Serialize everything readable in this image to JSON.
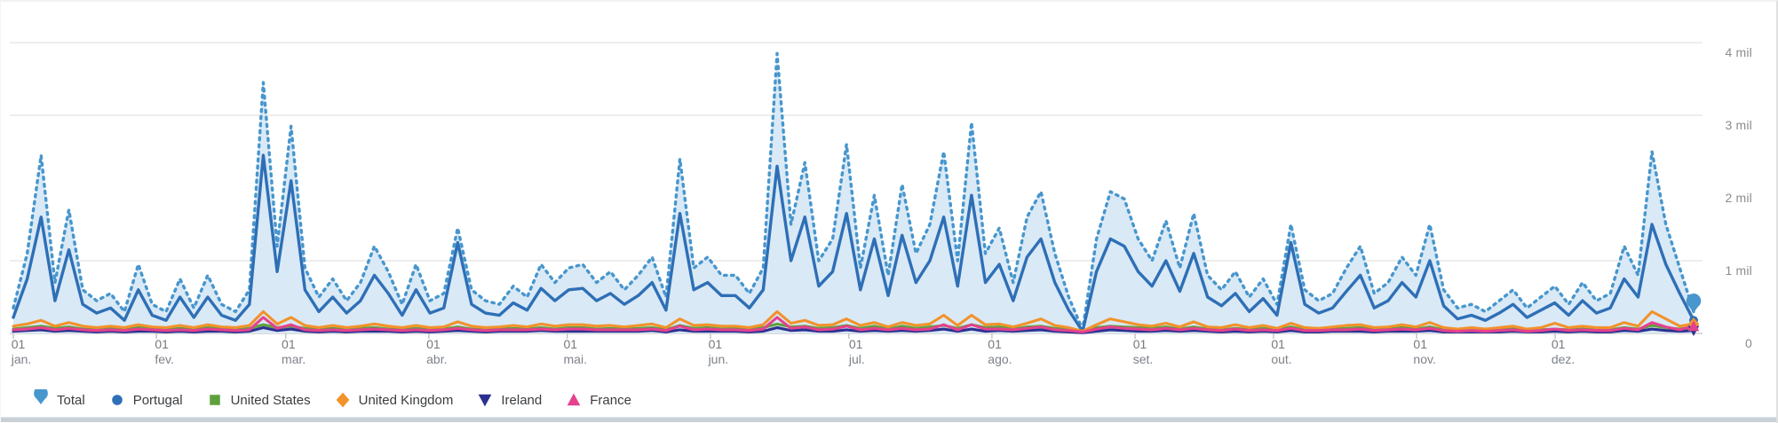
{
  "legend": {
    "items": [
      {
        "label": "Total",
        "marker": "pin",
        "color": "#4796cd"
      },
      {
        "label": "Portugal",
        "marker": "circle",
        "color": "#2e6fb6"
      },
      {
        "label": "United States",
        "marker": "square",
        "color": "#5ea13c"
      },
      {
        "label": "United Kingdom",
        "marker": "diamond",
        "color": "#f2922a"
      },
      {
        "label": "Ireland",
        "marker": "triangle-down",
        "color": "#2c3190"
      },
      {
        "label": "France",
        "marker": "triangle-up",
        "color": "#e5418f"
      }
    ]
  },
  "chart_data": {
    "type": "line",
    "title": "",
    "unit": "mil",
    "sampling": "daily traffic Jan 1 - Dec 31, values in millions estimated every 3 days",
    "x_axis": {
      "ticks": [
        {
          "line1": "01",
          "line2": "jan.",
          "day": 0
        },
        {
          "line1": "01",
          "line2": "fev.",
          "day": 31
        },
        {
          "line1": "01",
          "line2": "mar.",
          "day": 59
        },
        {
          "line1": "01",
          "line2": "abr.",
          "day": 90
        },
        {
          "line1": "01",
          "line2": "mai.",
          "day": 120
        },
        {
          "line1": "01",
          "line2": "jun.",
          "day": 151
        },
        {
          "line1": "01",
          "line2": "jul.",
          "day": 181
        },
        {
          "line1": "01",
          "line2": "ago.",
          "day": 212
        },
        {
          "line1": "01",
          "line2": "set.",
          "day": 243
        },
        {
          "line1": "01",
          "line2": "out.",
          "day": 273
        },
        {
          "line1": "01",
          "line2": "nov.",
          "day": 304
        },
        {
          "line1": "01",
          "line2": "dez.",
          "day": 334
        }
      ]
    },
    "y_axis": {
      "ylim": [
        0,
        4.3
      ],
      "ticks": [
        {
          "label": "4 mil",
          "value": 4,
          "gridline": true
        },
        {
          "label": "3 mil",
          "value": 3,
          "gridline": true
        },
        {
          "label": "2 mil",
          "value": 2,
          "gridline": false
        },
        {
          "label": "1 mil",
          "value": 1,
          "gridline": true
        },
        {
          "label": "0",
          "value": 0,
          "gridline": true
        }
      ]
    },
    "series": [
      {
        "name": "Total",
        "color": "#4796cd",
        "style": "dotted",
        "marker": "pin",
        "fill": "#d9e9f6",
        "values": [
          0.35,
          1.1,
          2.45,
          0.7,
          1.7,
          0.6,
          0.45,
          0.55,
          0.3,
          0.95,
          0.4,
          0.3,
          0.75,
          0.35,
          0.8,
          0.4,
          0.3,
          0.6,
          3.45,
          1.2,
          2.85,
          0.9,
          0.5,
          0.75,
          0.45,
          0.7,
          1.2,
          0.85,
          0.4,
          0.95,
          0.45,
          0.55,
          1.45,
          0.6,
          0.45,
          0.4,
          0.65,
          0.5,
          0.95,
          0.7,
          0.9,
          0.95,
          0.7,
          0.85,
          0.6,
          0.8,
          1.05,
          0.5,
          2.4,
          0.9,
          1.05,
          0.8,
          0.8,
          0.55,
          0.9,
          3.85,
          1.5,
          2.35,
          1.0,
          1.3,
          2.6,
          0.9,
          1.9,
          0.8,
          2.05,
          1.1,
          1.5,
          2.5,
          1.0,
          2.9,
          1.1,
          1.45,
          0.7,
          1.6,
          1.95,
          1.1,
          0.5,
          0.05,
          1.3,
          1.95,
          1.85,
          1.3,
          1.0,
          1.55,
          0.9,
          1.65,
          0.8,
          0.6,
          0.85,
          0.5,
          0.75,
          0.4,
          1.5,
          0.6,
          0.45,
          0.55,
          0.9,
          1.2,
          0.55,
          0.7,
          1.05,
          0.8,
          1.5,
          0.6,
          0.35,
          0.4,
          0.3,
          0.45,
          0.6,
          0.35,
          0.5,
          0.65,
          0.4,
          0.7,
          0.45,
          0.55,
          1.2,
          0.8,
          2.5,
          1.5,
          0.9,
          0.3
        ]
      },
      {
        "name": "Portugal",
        "color": "#2e6fb6",
        "style": "solid",
        "marker": "circle",
        "values": [
          0.22,
          0.75,
          1.6,
          0.45,
          1.15,
          0.4,
          0.28,
          0.35,
          0.18,
          0.6,
          0.25,
          0.18,
          0.5,
          0.22,
          0.5,
          0.25,
          0.18,
          0.4,
          2.45,
          0.85,
          2.1,
          0.6,
          0.3,
          0.5,
          0.28,
          0.45,
          0.8,
          0.55,
          0.25,
          0.6,
          0.28,
          0.35,
          1.25,
          0.4,
          0.28,
          0.25,
          0.42,
          0.32,
          0.62,
          0.45,
          0.6,
          0.62,
          0.45,
          0.55,
          0.4,
          0.52,
          0.7,
          0.32,
          1.65,
          0.6,
          0.7,
          0.52,
          0.52,
          0.35,
          0.6,
          2.3,
          1.0,
          1.6,
          0.65,
          0.85,
          1.65,
          0.6,
          1.3,
          0.52,
          1.35,
          0.7,
          1.0,
          1.6,
          0.65,
          1.9,
          0.7,
          0.95,
          0.45,
          1.05,
          1.3,
          0.7,
          0.32,
          0.03,
          0.85,
          1.3,
          1.2,
          0.85,
          0.65,
          1.0,
          0.58,
          1.1,
          0.5,
          0.38,
          0.55,
          0.3,
          0.48,
          0.25,
          1.25,
          0.4,
          0.28,
          0.35,
          0.58,
          0.8,
          0.35,
          0.45,
          0.7,
          0.5,
          1.0,
          0.38,
          0.2,
          0.25,
          0.18,
          0.28,
          0.4,
          0.22,
          0.32,
          0.42,
          0.25,
          0.45,
          0.28,
          0.35,
          0.75,
          0.5,
          1.5,
          0.95,
          0.55,
          0.18
        ]
      },
      {
        "name": "United States",
        "color": "#5ea13c",
        "style": "solid",
        "marker": "square",
        "values": [
          0.06,
          0.08,
          0.1,
          0.07,
          0.09,
          0.06,
          0.05,
          0.07,
          0.05,
          0.08,
          0.06,
          0.05,
          0.07,
          0.05,
          0.08,
          0.06,
          0.05,
          0.07,
          0.12,
          0.08,
          0.1,
          0.07,
          0.05,
          0.07,
          0.05,
          0.07,
          0.08,
          0.06,
          0.05,
          0.07,
          0.05,
          0.06,
          0.09,
          0.06,
          0.05,
          0.06,
          0.07,
          0.06,
          0.08,
          0.06,
          0.08,
          0.08,
          0.06,
          0.07,
          0.06,
          0.07,
          0.08,
          0.05,
          0.11,
          0.07,
          0.08,
          0.06,
          0.07,
          0.05,
          0.08,
          0.13,
          0.09,
          0.1,
          0.07,
          0.08,
          0.11,
          0.07,
          0.1,
          0.06,
          0.1,
          0.07,
          0.09,
          0.11,
          0.07,
          0.12,
          0.08,
          0.09,
          0.06,
          0.09,
          0.1,
          0.07,
          0.05,
          0.02,
          0.08,
          0.1,
          0.09,
          0.08,
          0.07,
          0.09,
          0.06,
          0.09,
          0.06,
          0.05,
          0.07,
          0.05,
          0.07,
          0.05,
          0.09,
          0.05,
          0.05,
          0.06,
          0.07,
          0.08,
          0.05,
          0.06,
          0.08,
          0.06,
          0.09,
          0.05,
          0.04,
          0.05,
          0.04,
          0.05,
          0.06,
          0.04,
          0.05,
          0.06,
          0.05,
          0.06,
          0.05,
          0.05,
          0.08,
          0.06,
          0.11,
          0.08,
          0.06,
          0.09
        ]
      },
      {
        "name": "United Kingdom",
        "color": "#f2922a",
        "style": "solid",
        "marker": "diamond",
        "values": [
          0.1,
          0.13,
          0.18,
          0.1,
          0.15,
          0.1,
          0.08,
          0.1,
          0.08,
          0.12,
          0.09,
          0.08,
          0.11,
          0.08,
          0.12,
          0.09,
          0.08,
          0.11,
          0.3,
          0.13,
          0.22,
          0.11,
          0.08,
          0.11,
          0.08,
          0.1,
          0.13,
          0.1,
          0.08,
          0.11,
          0.08,
          0.09,
          0.16,
          0.1,
          0.08,
          0.09,
          0.11,
          0.09,
          0.13,
          0.1,
          0.12,
          0.12,
          0.1,
          0.11,
          0.09,
          0.11,
          0.13,
          0.08,
          0.2,
          0.11,
          0.12,
          0.1,
          0.1,
          0.08,
          0.12,
          0.3,
          0.14,
          0.18,
          0.11,
          0.12,
          0.2,
          0.11,
          0.15,
          0.09,
          0.15,
          0.11,
          0.13,
          0.25,
          0.11,
          0.25,
          0.12,
          0.13,
          0.09,
          0.14,
          0.2,
          0.11,
          0.08,
          0.03,
          0.12,
          0.2,
          0.16,
          0.12,
          0.1,
          0.14,
          0.09,
          0.16,
          0.09,
          0.08,
          0.12,
          0.08,
          0.11,
          0.07,
          0.14,
          0.08,
          0.07,
          0.09,
          0.11,
          0.12,
          0.08,
          0.09,
          0.12,
          0.09,
          0.15,
          0.08,
          0.06,
          0.08,
          0.06,
          0.08,
          0.1,
          0.06,
          0.08,
          0.14,
          0.08,
          0.1,
          0.08,
          0.08,
          0.15,
          0.1,
          0.3,
          0.2,
          0.1,
          0.13
        ]
      },
      {
        "name": "Ireland",
        "color": "#2c3190",
        "style": "solid",
        "marker": "triangle-down",
        "values": [
          0.03,
          0.04,
          0.05,
          0.03,
          0.04,
          0.03,
          0.02,
          0.03,
          0.02,
          0.03,
          0.03,
          0.02,
          0.03,
          0.02,
          0.03,
          0.03,
          0.02,
          0.03,
          0.08,
          0.04,
          0.06,
          0.03,
          0.02,
          0.03,
          0.02,
          0.03,
          0.03,
          0.03,
          0.02,
          0.03,
          0.02,
          0.03,
          0.04,
          0.03,
          0.02,
          0.03,
          0.03,
          0.03,
          0.04,
          0.03,
          0.03,
          0.03,
          0.03,
          0.03,
          0.03,
          0.03,
          0.04,
          0.02,
          0.05,
          0.03,
          0.03,
          0.03,
          0.03,
          0.02,
          0.03,
          0.08,
          0.04,
          0.05,
          0.03,
          0.03,
          0.05,
          0.03,
          0.04,
          0.03,
          0.04,
          0.03,
          0.04,
          0.06,
          0.03,
          0.06,
          0.03,
          0.04,
          0.03,
          0.04,
          0.05,
          0.03,
          0.02,
          0.01,
          0.03,
          0.05,
          0.04,
          0.03,
          0.03,
          0.04,
          0.03,
          0.04,
          0.03,
          0.02,
          0.03,
          0.02,
          0.03,
          0.02,
          0.04,
          0.02,
          0.02,
          0.03,
          0.03,
          0.03,
          0.02,
          0.03,
          0.03,
          0.03,
          0.04,
          0.02,
          0.02,
          0.02,
          0.02,
          0.02,
          0.03,
          0.02,
          0.02,
          0.03,
          0.02,
          0.03,
          0.02,
          0.02,
          0.04,
          0.03,
          0.06,
          0.04,
          0.03,
          0.04
        ]
      },
      {
        "name": "France",
        "color": "#e5418f",
        "style": "solid",
        "marker": "triangle-up",
        "values": [
          0.05,
          0.06,
          0.08,
          0.05,
          0.07,
          0.05,
          0.04,
          0.05,
          0.04,
          0.06,
          0.05,
          0.04,
          0.05,
          0.04,
          0.06,
          0.05,
          0.04,
          0.05,
          0.22,
          0.07,
          0.12,
          0.05,
          0.04,
          0.05,
          0.04,
          0.05,
          0.06,
          0.05,
          0.04,
          0.05,
          0.04,
          0.05,
          0.07,
          0.05,
          0.04,
          0.05,
          0.05,
          0.05,
          0.06,
          0.05,
          0.06,
          0.06,
          0.05,
          0.05,
          0.05,
          0.05,
          0.06,
          0.04,
          0.1,
          0.05,
          0.06,
          0.05,
          0.05,
          0.04,
          0.06,
          0.22,
          0.07,
          0.09,
          0.05,
          0.06,
          0.1,
          0.05,
          0.07,
          0.05,
          0.07,
          0.05,
          0.06,
          0.12,
          0.05,
          0.12,
          0.06,
          0.06,
          0.05,
          0.07,
          0.09,
          0.05,
          0.04,
          0.02,
          0.06,
          0.09,
          0.07,
          0.06,
          0.05,
          0.07,
          0.05,
          0.07,
          0.05,
          0.04,
          0.06,
          0.04,
          0.05,
          0.04,
          0.07,
          0.04,
          0.04,
          0.05,
          0.05,
          0.06,
          0.04,
          0.05,
          0.06,
          0.05,
          0.07,
          0.04,
          0.03,
          0.04,
          0.03,
          0.04,
          0.05,
          0.03,
          0.04,
          0.06,
          0.04,
          0.05,
          0.04,
          0.04,
          0.07,
          0.05,
          0.15,
          0.09,
          0.05,
          0.1
        ]
      }
    ]
  }
}
